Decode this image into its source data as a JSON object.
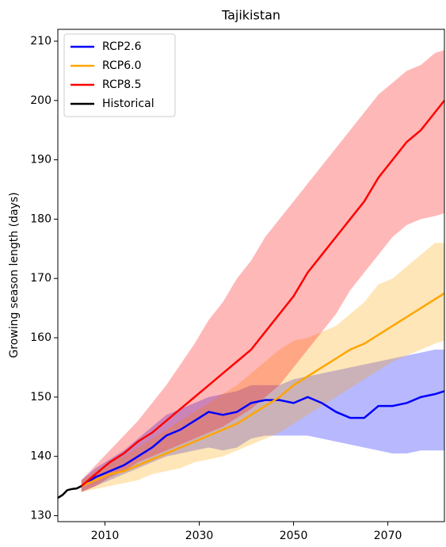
{
  "chart_data": {
    "type": "line",
    "title": "Tajikistan",
    "ylabel": "Growing season length (days)",
    "xlim": [
      2000,
      2082
    ],
    "ylim": [
      129,
      212
    ],
    "xticks": [
      2010,
      2030,
      2050,
      2070
    ],
    "yticks": [
      130,
      140,
      150,
      160,
      170,
      180,
      190,
      200,
      210
    ],
    "legend": "upper left",
    "series": [
      {
        "name": "RCP2.6",
        "color": "#0000ff",
        "x": [
          2005,
          2008,
          2011,
          2014,
          2017,
          2020,
          2023,
          2026,
          2029,
          2032,
          2035,
          2038,
          2041,
          2044,
          2047,
          2050,
          2053,
          2056,
          2059,
          2062,
          2065,
          2068,
          2071,
          2074,
          2077,
          2080,
          2082
        ],
        "values": [
          135,
          136.5,
          137.5,
          138.5,
          140,
          141.5,
          143.5,
          144.5,
          146,
          147.5,
          147,
          147.5,
          149,
          149.5,
          149.5,
          149,
          150,
          149,
          147.5,
          146.5,
          146.5,
          148.5,
          148.5,
          149,
          150,
          150.5,
          151
        ],
        "lower": [
          134,
          135,
          136,
          137,
          138,
          139,
          140,
          140.5,
          141,
          141.5,
          141,
          141.5,
          143,
          143.5,
          143.5,
          143.5,
          143.5,
          143,
          142.5,
          142,
          141.5,
          141,
          140.5,
          140.5,
          141,
          141,
          141
        ],
        "upper": [
          136,
          138,
          139.5,
          141,
          143,
          145,
          147,
          148,
          149,
          150,
          150.5,
          151,
          152,
          152,
          152,
          153,
          153.5,
          154,
          154.5,
          155,
          155.5,
          156,
          156.5,
          157,
          157.5,
          158,
          158
        ]
      },
      {
        "name": "RCP6.0",
        "color": "#ffa500",
        "x": [
          2005,
          2008,
          2011,
          2014,
          2017,
          2020,
          2023,
          2026,
          2029,
          2032,
          2035,
          2038,
          2041,
          2044,
          2047,
          2050,
          2053,
          2056,
          2059,
          2062,
          2065,
          2068,
          2071,
          2074,
          2077,
          2080,
          2082
        ],
        "values": [
          135,
          136,
          137,
          137.5,
          138.5,
          139.5,
          140.5,
          141.5,
          142.5,
          143.5,
          144.5,
          145.5,
          147,
          148.5,
          150,
          152,
          153.5,
          155,
          156.5,
          158,
          159,
          160.5,
          162,
          163.5,
          165,
          166.5,
          167.5
        ],
        "lower": [
          134,
          134.5,
          135,
          135.5,
          136,
          137,
          137.5,
          138,
          139,
          139.5,
          140,
          141,
          142,
          143,
          144,
          145.5,
          147,
          148.5,
          150,
          151.5,
          153,
          154.5,
          156,
          157,
          158,
          159,
          159.5
        ],
        "upper": [
          136,
          137.5,
          139,
          140,
          141.5,
          143,
          144.5,
          146,
          147.5,
          149,
          150.5,
          152,
          154,
          156,
          158,
          159.5,
          160,
          161,
          162,
          164,
          166,
          169,
          170,
          172,
          174,
          176,
          176
        ]
      },
      {
        "name": "RCP8.5",
        "color": "#ff0000",
        "x": [
          2005,
          2008,
          2011,
          2014,
          2017,
          2020,
          2023,
          2026,
          2029,
          2032,
          2035,
          2038,
          2041,
          2044,
          2047,
          2050,
          2053,
          2056,
          2059,
          2062,
          2065,
          2068,
          2071,
          2074,
          2077,
          2080,
          2082
        ],
        "values": [
          135,
          137,
          139,
          140.5,
          142.5,
          144,
          146,
          148,
          150,
          152,
          154,
          156,
          158,
          161,
          164,
          167,
          171,
          174,
          177,
          180,
          183,
          187,
          190,
          193,
          195,
          198,
          200
        ],
        "lower": [
          134,
          135,
          136.5,
          137.5,
          139,
          140,
          141,
          142,
          143,
          144,
          145,
          146.5,
          148,
          150,
          152,
          155,
          158,
          161,
          164,
          168,
          171,
          174,
          177,
          179,
          180,
          180.5,
          181
        ],
        "upper": [
          136,
          138.5,
          141,
          143.5,
          146,
          149,
          152,
          155.5,
          159,
          163,
          166,
          170,
          173,
          177,
          180,
          183,
          186,
          189,
          192,
          195,
          198,
          201,
          203,
          205,
          206,
          208,
          208.5
        ]
      },
      {
        "name": "Historical",
        "color": "#000000",
        "x": [
          2000,
          2001,
          2002,
          2003,
          2004,
          2005
        ],
        "values": [
          133,
          133.5,
          134.3,
          134.5,
          134.6,
          135
        ]
      }
    ]
  }
}
